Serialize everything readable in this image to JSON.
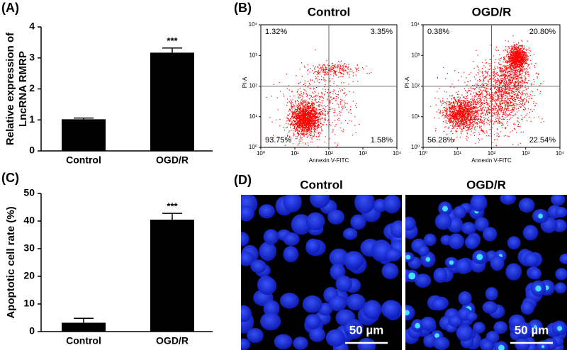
{
  "chart_data": [
    {
      "type": "bar",
      "panel": "(A)",
      "ylabel": [
        "Relative expression of",
        "LncRNA RMRP"
      ],
      "categories": [
        "Control",
        "OGD/R"
      ],
      "values": [
        1.02,
        3.17
      ],
      "errors": [
        0.04,
        0.15
      ],
      "color": "#000000",
      "ylim": [
        0,
        4
      ],
      "yticks": [
        0,
        1,
        2,
        3,
        4
      ],
      "annotation": "***"
    },
    {
      "type": "quadrant",
      "panel": "(B)",
      "title": "Control",
      "xlabel": "Annexin V-FITC",
      "ylabel": "PI-A",
      "log": true,
      "xlim": [
        1,
        10000
      ],
      "ylim": [
        1,
        10000
      ],
      "gate": [
        100,
        100
      ],
      "color": "#ff0000",
      "xticks": [
        {
          "value": 1,
          "label": "10⁰"
        },
        {
          "value": 10,
          "label": "10¹"
        },
        {
          "value": 100,
          "label": "10²"
        },
        {
          "value": 1000,
          "label": "10³"
        },
        {
          "value": 10000,
          "label": "10⁴"
        }
      ],
      "yticks": [
        {
          "value": 1,
          "label": "10⁰"
        },
        {
          "value": 10,
          "label": "10¹"
        },
        {
          "value": 100,
          "label": "10²"
        },
        {
          "value": 1000,
          "label": "10³"
        },
        {
          "value": 10000,
          "label": "10⁴"
        }
      ],
      "values": [
        1.32,
        3.35,
        93.75,
        1.58
      ],
      "value_labels": [
        "1.32%",
        "3.35%",
        "93.75%",
        "1.58%"
      ]
    },
    {
      "type": "quadrant",
      "title": "OGD/R",
      "xlabel": "Annexin V-FITC",
      "ylabel": "PI-A",
      "log": true,
      "xlim": [
        1,
        10000
      ],
      "ylim": [
        1,
        10000
      ],
      "gate": [
        100,
        100
      ],
      "color": "#ff0000",
      "xticks": [
        {
          "value": 1,
          "label": "10⁰"
        },
        {
          "value": 10,
          "label": "10¹"
        },
        {
          "value": 100,
          "label": "10²"
        },
        {
          "value": 1000,
          "label": "10³"
        },
        {
          "value": 10000,
          "label": "10⁴"
        }
      ],
      "yticks": [
        {
          "value": 1,
          "label": "10⁰"
        },
        {
          "value": 10,
          "label": "10¹"
        },
        {
          "value": 100,
          "label": "10²"
        },
        {
          "value": 1000,
          "label": "10³"
        },
        {
          "value": 10000,
          "label": "10⁴"
        }
      ],
      "values": [
        0.38,
        20.8,
        56.28,
        22.54
      ],
      "value_labels": [
        "0.38%",
        "20.80%",
        "56.28%",
        "22.54%"
      ]
    },
    {
      "type": "bar",
      "panel": "(C)",
      "ylabel": [
        "Apoptotic cell rate (%)"
      ],
      "categories": [
        "Control",
        "OGD/R"
      ],
      "values": [
        3.2,
        40.5
      ],
      "errors": [
        1.6,
        2.3
      ],
      "color": "#000000",
      "ylim": [
        0,
        50
      ],
      "yticks": [
        0,
        10,
        20,
        30,
        40,
        50
      ],
      "annotation": "***"
    }
  ],
  "images": {
    "panel": "(D)",
    "items": [
      {
        "title": "Control",
        "scale_bar": "50 µm"
      },
      {
        "title": "OGD/R",
        "scale_bar": "50 µm"
      }
    ]
  }
}
